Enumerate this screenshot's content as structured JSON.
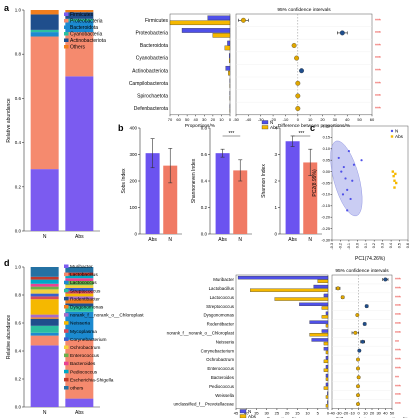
{
  "colors": {
    "N": "#4f50e8",
    "Abs": "#f5b800",
    "N_dot": "#1f4e8c",
    "Abs_dot": "#e0a700",
    "star": "#e8302a",
    "ellipse_N": "#b3b8ee",
    "bar_index_N": "#6b53f0",
    "bar_index_Abs": "#f07a64"
  },
  "panels": {
    "a": {
      "label": "a"
    },
    "b": {
      "label": "b"
    },
    "c": {
      "label": "c"
    },
    "d": {
      "label": "d"
    }
  },
  "chart_data": [
    {
      "id": "a-stacked",
      "type": "bar",
      "stacked": true,
      "categories": [
        "N",
        "Abs"
      ],
      "ylabel": "Relative abundance",
      "ylim": [
        0,
        1
      ],
      "yticks": [
        "0.0",
        "0.2",
        "0.4",
        "0.6",
        "0.8",
        "1.0"
      ],
      "legend": [
        {
          "name": "Firmicutes",
          "color": "#7b5bf0"
        },
        {
          "name": "Proteobacteria",
          "color": "#f58a6e"
        },
        {
          "name": "Bacteroidota",
          "color": "#1c8ad0"
        },
        {
          "name": "Cyanobacteria",
          "color": "#2cbfa0"
        },
        {
          "name": "Actinobacteriota",
          "color": "#1f4e8c"
        },
        {
          "name": "Others",
          "color": "#f07e1e"
        }
      ],
      "series": [
        {
          "name": "Firmicutes",
          "values": [
            0.28,
            0.7
          ]
        },
        {
          "name": "Proteobacteria",
          "values": [
            0.6,
            0.2
          ]
        },
        {
          "name": "Bacteroidota",
          "values": [
            0.02,
            0.05
          ]
        },
        {
          "name": "Cyanobacteria",
          "values": [
            0.01,
            0.01
          ]
        },
        {
          "name": "Actinobacteriota",
          "values": [
            0.07,
            0.03
          ]
        },
        {
          "name": "Others",
          "values": [
            0.02,
            0.01
          ]
        }
      ]
    },
    {
      "id": "a-diff",
      "type": "bar",
      "orientation": "horizontal",
      "categories": [
        "Firmicutes",
        "Proteobacteria",
        "Bacteroidota",
        "Cyanobacteria",
        "Actinobacteriota",
        "Campilobacterota",
        "Spirochaetota",
        "Defenbacterota"
      ],
      "proportions": {
        "N": [
          26,
          56,
          3,
          1,
          5,
          0.3,
          0.2,
          0.2
        ],
        "Abs": [
          70,
          20,
          6,
          1,
          2,
          0.3,
          0.2,
          0.2
        ]
      },
      "prop_ticks": [
        0,
        10,
        20,
        30,
        40,
        50,
        60,
        70
      ],
      "prop_xlabel": "Proportions/%",
      "diff_title": "95% confidence intervals",
      "diff_xlabel": "Difference between proportions/%",
      "diff_ticks": [
        -50,
        -40,
        -30,
        -20,
        -10,
        0,
        10,
        20,
        30,
        40,
        50,
        60
      ],
      "diff": [
        {
          "value": -44,
          "lo": -48,
          "hi": -40,
          "color": "Abs",
          "sig": "***"
        },
        {
          "value": 36,
          "lo": 32,
          "hi": 40,
          "color": "N",
          "sig": "***"
        },
        {
          "value": -3,
          "lo": -4,
          "hi": -2,
          "color": "Abs",
          "sig": "***"
        },
        {
          "value": -1,
          "lo": -2,
          "hi": 0,
          "color": "Abs",
          "sig": "***"
        },
        {
          "value": 3,
          "lo": 2,
          "hi": 4,
          "color": "N",
          "sig": "***"
        },
        {
          "value": 0,
          "lo": -0.5,
          "hi": 0.5,
          "color": "Abs",
          "sig": "***"
        },
        {
          "value": 0,
          "lo": -0.5,
          "hi": 0.5,
          "color": "Abs",
          "sig": "***"
        },
        {
          "value": 0,
          "lo": -0.5,
          "hi": 0.5,
          "color": "Abs",
          "sig": "***"
        }
      ],
      "legend": [
        "N",
        "Abs"
      ]
    },
    {
      "id": "b-sobs",
      "type": "bar",
      "categories": [
        "Abs",
        "N"
      ],
      "values": [
        305,
        258
      ],
      "errors": [
        55,
        65
      ],
      "ylabel": "Sobs Index",
      "ylim": [
        0,
        400
      ],
      "yticks": [
        0,
        100,
        200,
        300,
        400
      ],
      "sig": ""
    },
    {
      "id": "b-shannoneven",
      "type": "bar",
      "categories": [
        "Abs",
        "N"
      ],
      "values": [
        0.61,
        0.48
      ],
      "errors": [
        0.03,
        0.08
      ],
      "ylabel": "Shannoneven Index",
      "ylim": [
        0,
        0.8
      ],
      "yticks": [
        "0.0",
        "0.2",
        "0.4",
        "0.6",
        "0.8"
      ],
      "sig": "***"
    },
    {
      "id": "b-shannon",
      "type": "bar",
      "categories": [
        "Abs",
        "N"
      ],
      "values": [
        3.5,
        2.7
      ],
      "errors": [
        0.2,
        0.5
      ],
      "ylabel": "Shannon Index",
      "ylim": [
        0,
        4
      ],
      "yticks": [
        0,
        1,
        2,
        3,
        4
      ],
      "sig": "***"
    },
    {
      "id": "c-pca",
      "type": "scatter",
      "xlabel": "PC1(74.26%)",
      "ylabel": "PC2(8.99%)",
      "xlim": [
        -0.3,
        0.6
      ],
      "ylim": [
        -0.3,
        0.2
      ],
      "xticks": [
        "-0.3",
        "-0.2",
        "-0.1",
        "0.0",
        "0.1",
        "0.2",
        "0.3",
        "0.4",
        "0.5",
        "0.6"
      ],
      "yticks": [
        "0.20",
        "0.15",
        "0.10",
        "0.05",
        "0.00",
        "-0.05",
        "-0.10",
        "-0.15",
        "-0.20",
        "-0.25",
        "-0.30"
      ],
      "legend": [
        "N",
        "Abs"
      ],
      "series": [
        {
          "name": "N",
          "x": [
            -0.22,
            -0.19,
            -0.16,
            -0.14,
            -0.12,
            -0.1,
            -0.08,
            -0.06,
            -0.12,
            -0.17,
            -0.04,
            0.05
          ],
          "y": [
            0.06,
            0.0,
            0.02,
            -0.03,
            -0.08,
            0.09,
            -0.12,
            -0.04,
            -0.17,
            -0.1,
            0.03,
            0.05
          ]
        },
        {
          "name": "Abs",
          "x": [
            0.42,
            0.43,
            0.44,
            0.45,
            0.46,
            0.44
          ],
          "y": [
            0.0,
            -0.02,
            -0.04,
            -0.01,
            -0.05,
            -0.07
          ]
        }
      ]
    },
    {
      "id": "d-stacked",
      "type": "bar",
      "stacked": true,
      "categories": [
        "N",
        "Abs"
      ],
      "ylabel": "Relative abundance",
      "ylim": [
        0,
        1
      ],
      "yticks": [
        "0.0",
        "0.2",
        "0.4",
        "0.6",
        "0.8",
        "1.0"
      ],
      "legend": [
        {
          "name": "Muribacter",
          "color": "#7b5bf0"
        },
        {
          "name": "Lactobacillus",
          "color": "#f58a6e"
        },
        {
          "name": "Lactococcus",
          "color": "#1c8ad0"
        },
        {
          "name": "Streptococcus",
          "color": "#2cbfa0"
        },
        {
          "name": "Rodentibacter",
          "color": "#1f4e8c"
        },
        {
          "name": "Dysgonomonas",
          "color": "#f07e1e"
        },
        {
          "name": "norank_f__norank_o__Chloroplast",
          "color": "#a66cc9"
        },
        {
          "name": "Neisseria",
          "color": "#f5b800"
        },
        {
          "name": "Mycoplasma",
          "color": "#d84b5a"
        },
        {
          "name": "Corynebacterium",
          "color": "#3a5fcd"
        },
        {
          "name": "Ochrobactrum",
          "color": "#f4d03f"
        },
        {
          "name": "Enterococcus",
          "color": "#6ab04c"
        },
        {
          "name": "Bacteroides",
          "color": "#e84393"
        },
        {
          "name": "Pediococcus",
          "color": "#00a8c6"
        },
        {
          "name": "Escherichia-Shigella",
          "color": "#c0392b"
        },
        {
          "name": "others",
          "color": "#2471a3"
        }
      ],
      "series": [
        {
          "name": "Muribacter",
          "values": [
            0.44,
            0.06
          ]
        },
        {
          "name": "Lactobacillus",
          "values": [
            0.07,
            0.42
          ]
        },
        {
          "name": "Lactococcus",
          "values": [
            0.02,
            0.2
          ]
        },
        {
          "name": "Streptococcus",
          "values": [
            0.05,
            0.04
          ]
        },
        {
          "name": "Rodentibacter",
          "values": [
            0.05,
            0.02
          ]
        },
        {
          "name": "Dysgonomonas",
          "values": [
            0.01,
            0.03
          ]
        },
        {
          "name": "norank_f__norank_o__Chloroplast",
          "values": [
            0.02,
            0.02
          ]
        },
        {
          "name": "Neisseria",
          "values": [
            0.11,
            0.02
          ]
        },
        {
          "name": "Mycoplasma",
          "values": [
            0.02,
            0.02
          ]
        },
        {
          "name": "Corynebacterium",
          "values": [
            0.02,
            0.02
          ]
        },
        {
          "name": "Ochrobactrum",
          "values": [
            0.03,
            0.02
          ]
        },
        {
          "name": "Enterococcus",
          "values": [
            0.02,
            0.03
          ]
        },
        {
          "name": "Bacteroides",
          "values": [
            0.02,
            0.02
          ]
        },
        {
          "name": "Pediococcus",
          "values": [
            0.03,
            0.02
          ]
        },
        {
          "name": "Escherichia-Shigella",
          "values": [
            0.02,
            0.02
          ]
        },
        {
          "name": "others",
          "values": [
            0.07,
            0.04
          ]
        }
      ]
    },
    {
      "id": "d-diff",
      "type": "bar",
      "orientation": "horizontal",
      "categories": [
        "Muribacter",
        "Lactobacillus",
        "Lactococcus",
        "Streptococcus",
        "Dysgonomonas",
        "Rodentibacter",
        "norank_f__norank_o__Chloroplast",
        "Neisseria",
        "Corynebacterium",
        "Ochrobactrum",
        "Enterococcus",
        "Bacteroides",
        "Pediococcus",
        "Weissella",
        "unclassified_f__Prevotellaceae"
      ],
      "proportions": {
        "N": [
          44,
          7,
          2,
          14,
          1,
          9,
          3,
          8,
          2,
          1,
          1,
          1,
          1,
          0.3,
          0.3
        ],
        "Abs": [
          5,
          38,
          26,
          3,
          3,
          1,
          9,
          2,
          1,
          2,
          2,
          1,
          2,
          1,
          1
        ]
      },
      "prop_ticks": [
        0,
        5,
        10,
        15,
        20,
        25,
        30,
        35,
        40,
        45
      ],
      "prop_xlabel": "Proportions/%",
      "diff_title": "95% confidence intervals",
      "diff_xlabel": "Difference between proportions/%",
      "diff_ticks": [
        -40,
        -30,
        -20,
        -10,
        0,
        10,
        20,
        30,
        40,
        50
      ],
      "diff": [
        {
          "value": 40,
          "lo": 36,
          "hi": 44,
          "color": "N",
          "sig": "***"
        },
        {
          "value": -31,
          "lo": -34,
          "hi": -28,
          "color": "Abs",
          "sig": "***"
        },
        {
          "value": -24,
          "lo": -26,
          "hi": -22,
          "color": "Abs",
          "sig": "***"
        },
        {
          "value": 12,
          "lo": 10,
          "hi": 14,
          "color": "N",
          "sig": "***"
        },
        {
          "value": -2,
          "lo": -3,
          "hi": -1,
          "color": "Abs",
          "sig": "***"
        },
        {
          "value": 9,
          "lo": 7,
          "hi": 11,
          "color": "N",
          "sig": "***"
        },
        {
          "value": -5,
          "lo": -10,
          "hi": 0,
          "color": "Abs",
          "sig": "***"
        },
        {
          "value": 6,
          "lo": 3,
          "hi": 9,
          "color": "N",
          "sig": "**"
        },
        {
          "value": 1,
          "lo": 0,
          "hi": 2,
          "color": "N",
          "sig": "***"
        },
        {
          "value": -1,
          "lo": -2,
          "hi": 0,
          "color": "Abs",
          "sig": "***"
        },
        {
          "value": -1,
          "lo": -2,
          "hi": 0,
          "color": "Abs",
          "sig": "***"
        },
        {
          "value": 0,
          "lo": -1,
          "hi": 1,
          "color": "Abs",
          "sig": "**"
        },
        {
          "value": -1,
          "lo": -2,
          "hi": 0,
          "color": "Abs",
          "sig": "***"
        },
        {
          "value": -1,
          "lo": -2,
          "hi": 0,
          "color": "Abs",
          "sig": "***"
        },
        {
          "value": -1,
          "lo": -2,
          "hi": 0,
          "color": "Abs",
          "sig": "***"
        }
      ],
      "legend": [
        "N",
        "Abs"
      ]
    }
  ]
}
